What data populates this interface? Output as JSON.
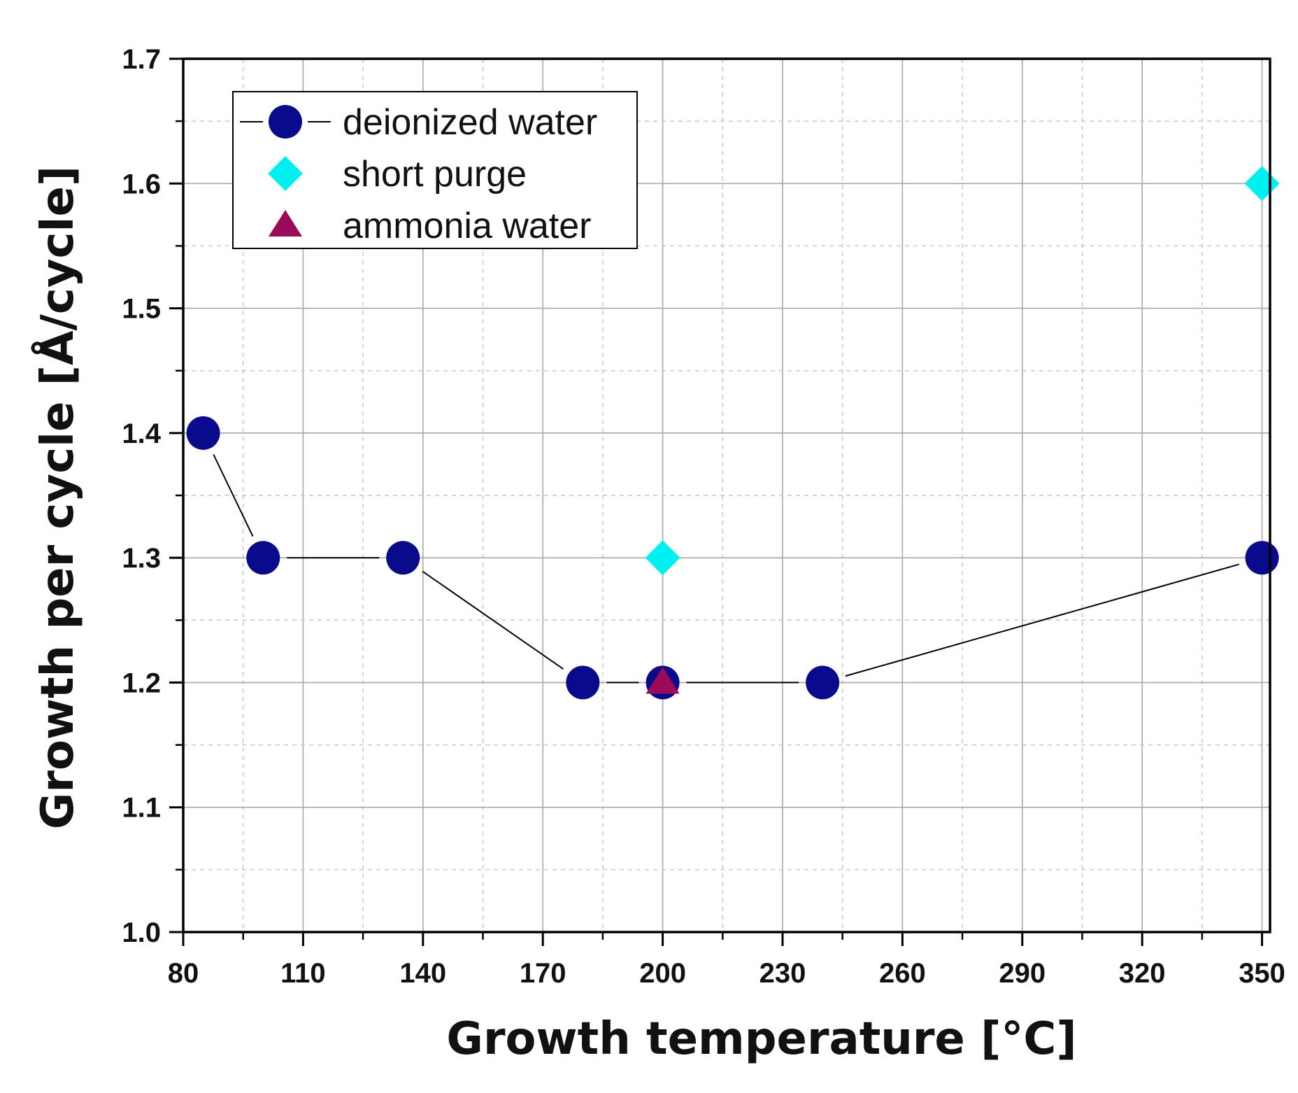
{
  "chart_data": {
    "type": "scatter",
    "title": "",
    "xlabel": "Growth temperature [°C]",
    "ylabel": "Growth per cycle [Å/cycle]",
    "xlim": [
      80,
      352
    ],
    "ylim": [
      1.0,
      1.7
    ],
    "x_ticks": [
      "80",
      "110",
      "140",
      "170",
      "200",
      "230",
      "260",
      "290",
      "320",
      "350"
    ],
    "y_ticks": [
      "1.0",
      "1.1",
      "1.2",
      "1.3",
      "1.4",
      "1.5",
      "1.6",
      "1.7"
    ],
    "grid": true,
    "legend_position": "top-left",
    "series": [
      {
        "name": "deionized water",
        "marker": "circle",
        "line": true,
        "color": "#0a0a8c",
        "points": [
          {
            "x": 85,
            "y": 1.4
          },
          {
            "x": 100,
            "y": 1.3
          },
          {
            "x": 135,
            "y": 1.3
          },
          {
            "x": 180,
            "y": 1.2
          },
          {
            "x": 200,
            "y": 1.2
          },
          {
            "x": 240,
            "y": 1.2
          },
          {
            "x": 350,
            "y": 1.3
          }
        ]
      },
      {
        "name": "short purge",
        "marker": "diamond",
        "line": false,
        "color": "#00f0f0",
        "points": [
          {
            "x": 200,
            "y": 1.3
          },
          {
            "x": 350,
            "y": 1.6
          }
        ]
      },
      {
        "name": "ammonia water",
        "marker": "triangle",
        "line": false,
        "color": "#9c0a5a",
        "points": [
          {
            "x": 200,
            "y": 1.2
          }
        ]
      }
    ]
  }
}
